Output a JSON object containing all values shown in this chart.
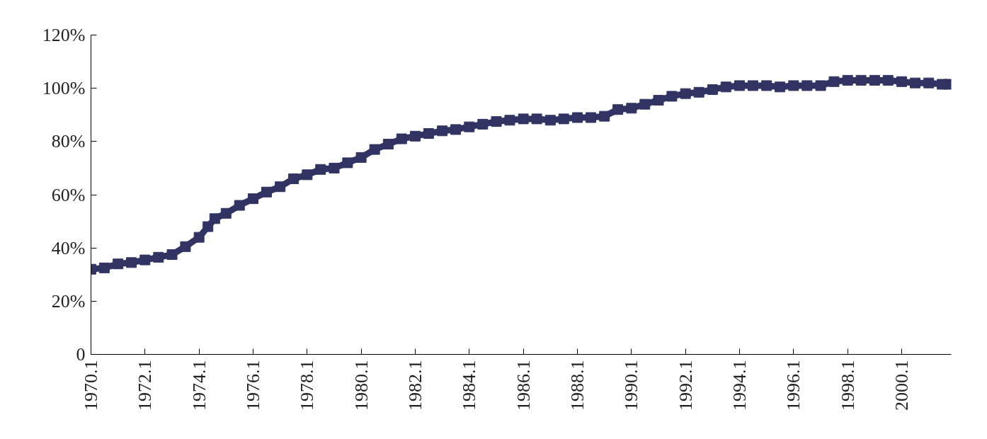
{
  "chart_data": {
    "type": "line",
    "marker": "square",
    "line_style": "solid",
    "grid": false,
    "xlim": [
      "1970-01",
      "2001-11"
    ],
    "ylim": [
      0,
      120
    ],
    "xticks": [
      {
        "value": "1970-01",
        "label": "1970.1"
      },
      {
        "value": "1972-01",
        "label": "1972.1"
      },
      {
        "value": "1974-01",
        "label": "1974.1"
      },
      {
        "value": "1976-01",
        "label": "1976.1"
      },
      {
        "value": "1978-01",
        "label": "1978.1"
      },
      {
        "value": "1980-01",
        "label": "1980.1"
      },
      {
        "value": "1982-01",
        "label": "1982.1"
      },
      {
        "value": "1984-01",
        "label": "1984.1"
      },
      {
        "value": "1986-01",
        "label": "1986.1"
      },
      {
        "value": "1988-01",
        "label": "1988.1"
      },
      {
        "value": "1990-01",
        "label": "1990.1"
      },
      {
        "value": "1992-01",
        "label": "1992.1"
      },
      {
        "value": "1994-01",
        "label": "1994.1"
      },
      {
        "value": "1996-01",
        "label": "1996.1"
      },
      {
        "value": "1998-01",
        "label": "1998.1"
      },
      {
        "value": "2000-01",
        "label": "2000.1"
      }
    ],
    "yticks": [
      0,
      {
        "value": 20,
        "label": "20%"
      },
      {
        "value": 40,
        "label": "40%"
      },
      {
        "value": 60,
        "label": "60%"
      },
      {
        "value": 80,
        "label": "80%"
      },
      {
        "value": 100,
        "label": "100%"
      },
      {
        "value": 120,
        "label": "120%"
      }
    ],
    "x": [
      "1970-01",
      "1970-07",
      "1971-01",
      "1971-07",
      "1972-01",
      "1972-07",
      "1973-01",
      "1973-07",
      "1974-01",
      "1974-05",
      "1974-08",
      "1975-01",
      "1975-07",
      "1976-01",
      "1976-07",
      "1977-01",
      "1977-07",
      "1978-01",
      "1978-07",
      "1979-01",
      "1979-07",
      "1980-01",
      "1980-07",
      "1981-01",
      "1981-07",
      "1982-01",
      "1982-07",
      "1983-01",
      "1983-07",
      "1984-01",
      "1984-07",
      "1985-01",
      "1985-07",
      "1986-01",
      "1986-07",
      "1987-01",
      "1987-07",
      "1988-01",
      "1988-07",
      "1989-01",
      "1989-07",
      "1990-01",
      "1990-07",
      "1991-01",
      "1991-07",
      "1992-01",
      "1992-07",
      "1993-01",
      "1993-07",
      "1994-01",
      "1994-07",
      "1995-01",
      "1995-07",
      "1996-01",
      "1996-07",
      "1997-01",
      "1997-07",
      "1998-01",
      "1998-07",
      "1999-01",
      "1999-07",
      "2000-01",
      "2000-07",
      "2001-01",
      "2001-07",
      "2001-10"
    ],
    "series": [
      {
        "color": "#313463",
        "values": [
          32,
          32.5,
          34,
          34.5,
          35.5,
          36.5,
          37.5,
          40.5,
          44,
          48,
          51,
          53,
          56,
          58.5,
          61,
          63,
          66,
          67.5,
          69.5,
          70,
          72,
          74,
          77,
          79,
          81,
          82,
          83,
          84,
          84.5,
          85.5,
          86.5,
          87.5,
          88,
          88.5,
          88.5,
          88,
          88.5,
          89,
          89,
          89.5,
          92,
          92.5,
          94,
          95.5,
          97,
          98,
          98.5,
          99.5,
          100.5,
          101,
          101,
          101,
          100.5,
          101,
          101,
          101,
          102.5,
          103,
          103,
          103,
          103,
          102.5,
          102,
          102,
          101.5,
          101.5
        ]
      }
    ]
  }
}
